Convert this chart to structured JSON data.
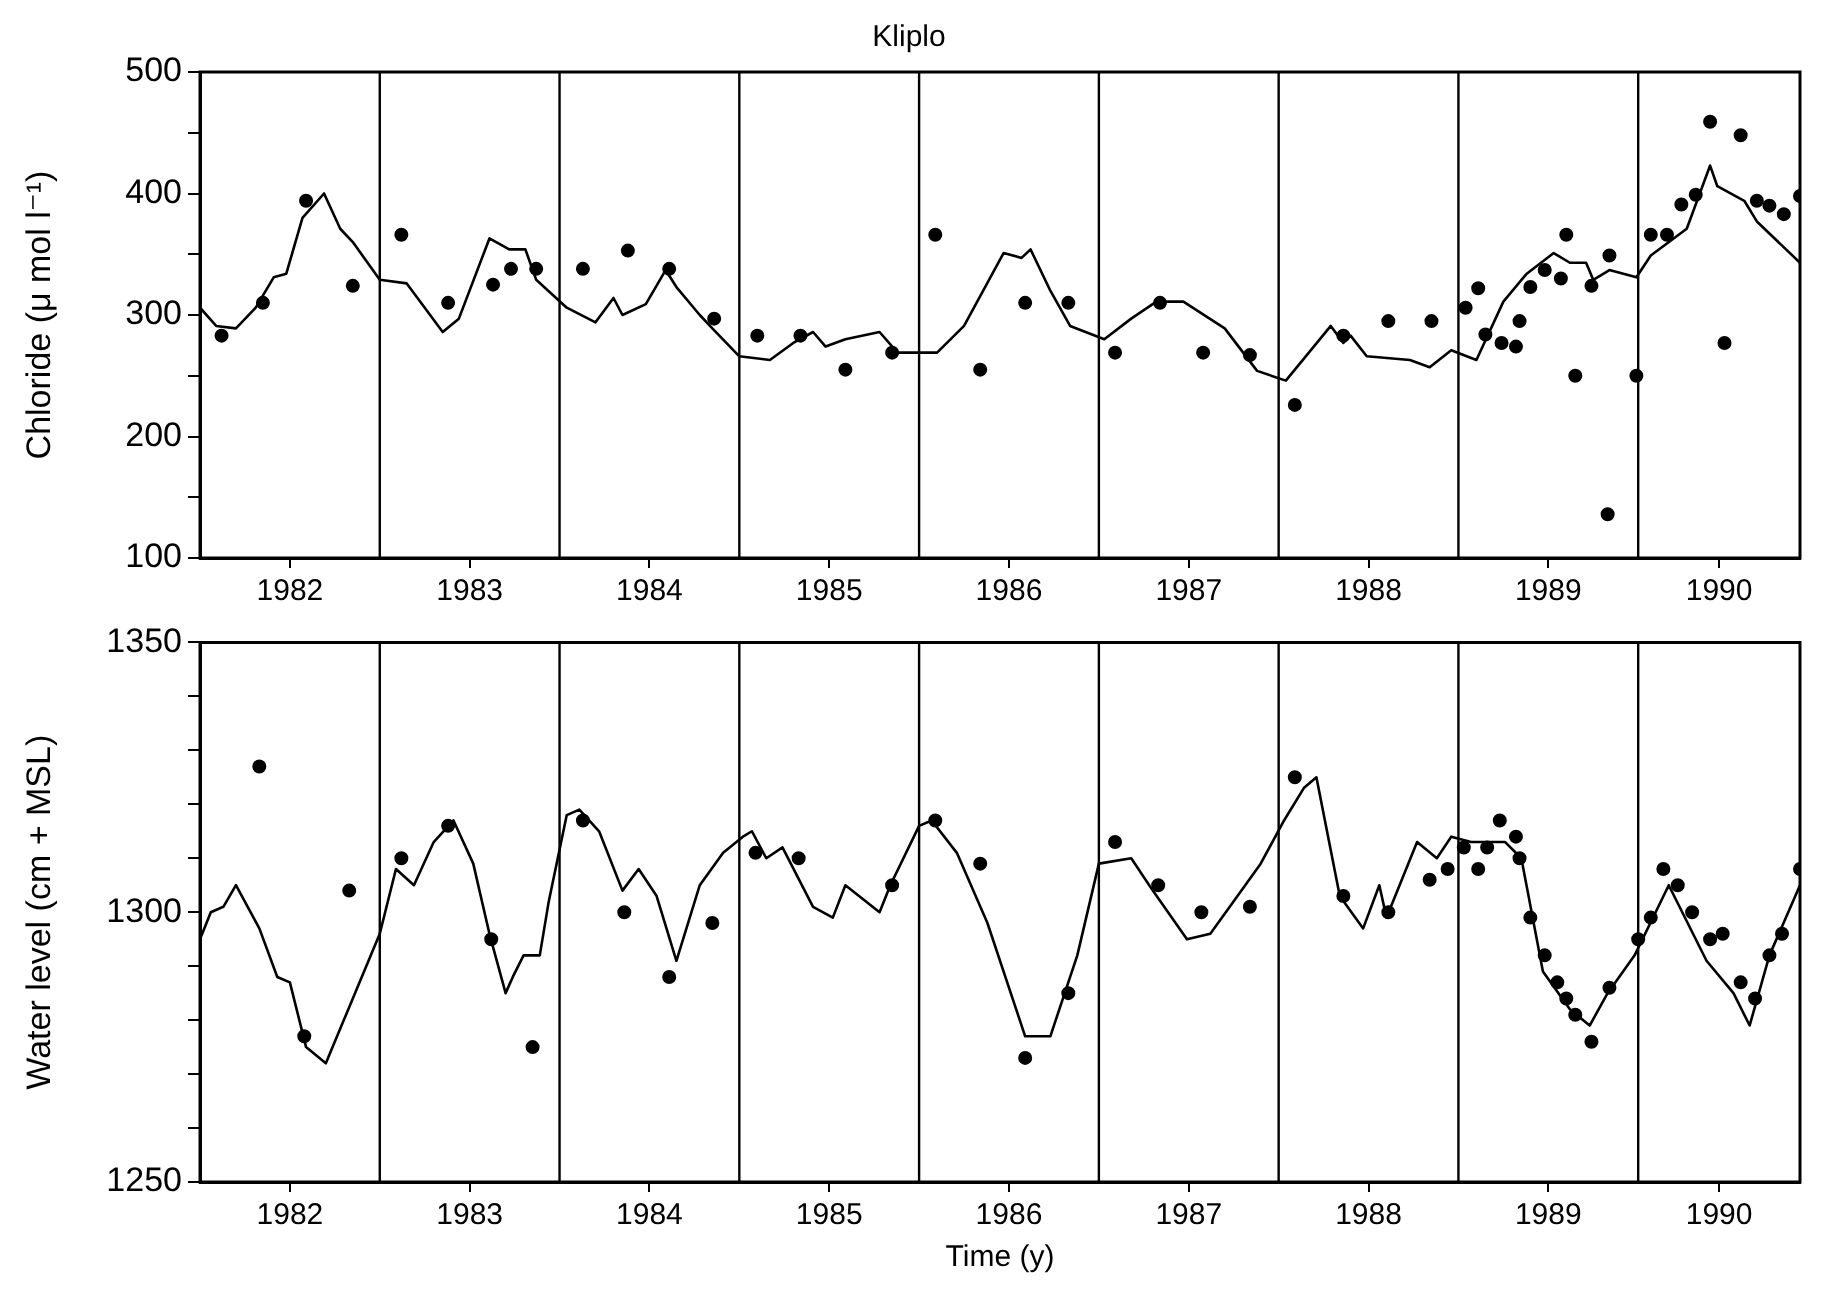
{
  "chart_data": [
    {
      "type": "line",
      "title": "Kliplo",
      "ylabel": "Chloride (μ mol l⁻¹)",
      "xlim": [
        1982,
        1990.9
      ],
      "ylim": [
        100,
        500
      ],
      "xticks": [
        {
          "value": 1982.5,
          "label": "1982"
        },
        {
          "value": 1983.5,
          "label": "1983"
        },
        {
          "value": 1984.5,
          "label": "1984"
        },
        {
          "value": 1985.5,
          "label": "1985"
        },
        {
          "value": 1986.5,
          "label": "1986"
        },
        {
          "value": 1987.5,
          "label": "1987"
        },
        {
          "value": 1988.5,
          "label": "1988"
        },
        {
          "value": 1989.5,
          "label": "1989"
        },
        {
          "value": 1990.45,
          "label": "1990"
        }
      ],
      "yticks": [
        100,
        {
          "value": 150,
          "label": null
        },
        200,
        {
          "value": 250,
          "label": null
        },
        300,
        {
          "value": 350,
          "label": null
        },
        400,
        {
          "value": 450,
          "label": null
        },
        500
      ],
      "grid": false,
      "legend": false,
      "ref_lines": [
        {
          "axis": "x",
          "value": 1983
        },
        {
          "axis": "x",
          "value": 1984
        },
        {
          "axis": "x",
          "value": 1985
        },
        {
          "axis": "x",
          "value": 1986
        },
        {
          "axis": "x",
          "value": 1987
        },
        {
          "axis": "x",
          "value": 1988
        },
        {
          "axis": "x",
          "value": 1989
        },
        {
          "axis": "x",
          "value": 1990
        }
      ],
      "series": [
        {
          "type": "line",
          "color": "#000000",
          "marker": "none",
          "x": [
            1982.0,
            1982.09,
            1982.2,
            1982.31,
            1982.41,
            1982.48,
            1982.57,
            1982.69,
            1982.78,
            1982.85,
            1983.0,
            1983.15,
            1983.35,
            1983.44,
            1983.61,
            1983.72,
            1983.81,
            1983.87,
            1984.04,
            1984.2,
            1984.3,
            1984.35,
            1984.48,
            1984.59,
            1984.65,
            1984.78,
            1984.85,
            1985.0,
            1985.17,
            1985.3,
            1985.41,
            1985.48,
            1985.59,
            1985.78,
            1985.88,
            1986.1,
            1986.25,
            1986.47,
            1986.57,
            1986.62,
            1986.73,
            1986.84,
            1987.03,
            1987.18,
            1987.32,
            1987.47,
            1987.7,
            1987.88,
            1988.04,
            1988.29,
            1988.36,
            1988.4,
            1988.49,
            1988.73,
            1988.84,
            1988.96,
            1989.1,
            1989.25,
            1989.38,
            1989.53,
            1989.62,
            1989.71,
            1989.75,
            1989.84,
            1989.99,
            1990.07,
            1990.27,
            1990.4,
            1990.44,
            1990.59,
            1990.66,
            1990.9
          ],
          "values": [
            306,
            291,
            289,
            306,
            331,
            334,
            380,
            400,
            371,
            360,
            329,
            326,
            286,
            297,
            363,
            354,
            354,
            329,
            306,
            294,
            314,
            300,
            309,
            337,
            323,
            300,
            289,
            266,
            263,
            277,
            286,
            274,
            280,
            286,
            269,
            269,
            291,
            351,
            347,
            354,
            320,
            291,
            280,
            297,
            311,
            311,
            289,
            254,
            246,
            291,
            277,
            283,
            266,
            263,
            257,
            271,
            263,
            311,
            334,
            351,
            343,
            343,
            329,
            337,
            331,
            349,
            371,
            423,
            406,
            394,
            377,
            343
          ]
        },
        {
          "type": "scatter",
          "color": "#000000",
          "marker": "circle",
          "x": [
            1982.12,
            1982.35,
            1982.59,
            1982.85,
            1983.12,
            1983.38,
            1983.63,
            1983.73,
            1983.87,
            1984.13,
            1984.38,
            1984.61,
            1984.86,
            1985.1,
            1985.34,
            1985.59,
            1985.85,
            1986.09,
            1986.34,
            1986.59,
            1986.83,
            1987.09,
            1987.34,
            1987.58,
            1987.84,
            1988.09,
            1988.36,
            1988.61,
            1988.85,
            1989.04,
            1989.11,
            1989.15,
            1989.24,
            1989.32,
            1989.34,
            1989.4,
            1989.48,
            1989.57,
            1989.6,
            1989.65,
            1989.74,
            1989.84,
            1989.83,
            1989.99,
            1990.07,
            1990.16,
            1990.24,
            1990.32,
            1990.4,
            1990.48,
            1990.57,
            1990.66,
            1990.73,
            1990.81,
            1990.9
          ],
          "values": [
            283,
            310,
            394,
            324,
            366,
            310,
            325,
            338,
            338,
            338,
            353,
            338,
            297,
            283,
            283,
            255,
            269,
            366,
            255,
            310,
            310,
            269,
            310,
            269,
            267,
            226,
            283,
            295,
            295,
            306,
            322,
            284,
            277,
            274,
            295,
            323,
            337,
            330,
            366,
            250,
            324,
            349,
            136,
            250,
            366,
            366,
            391,
            399,
            459,
            277,
            448,
            394,
            390,
            383,
            398
          ]
        }
      ]
    },
    {
      "type": "line",
      "xlabel": "Time (y)",
      "ylabel": "Water level (cm + MSL)",
      "xlim": [
        1982,
        1990.9
      ],
      "ylim": [
        1250,
        1350
      ],
      "xticks": [
        {
          "value": 1982.5,
          "label": "1982"
        },
        {
          "value": 1983.5,
          "label": "1983"
        },
        {
          "value": 1984.5,
          "label": "1984"
        },
        {
          "value": 1985.5,
          "label": "1985"
        },
        {
          "value": 1986.5,
          "label": "1986"
        },
        {
          "value": 1987.5,
          "label": "1987"
        },
        {
          "value": 1988.5,
          "label": "1988"
        },
        {
          "value": 1989.5,
          "label": "1989"
        },
        {
          "value": 1990.45,
          "label": "1990"
        }
      ],
      "yticks": [
        1250,
        {
          "value": 1260,
          "label": null
        },
        {
          "value": 1270,
          "label": null
        },
        {
          "value": 1280,
          "label": null
        },
        {
          "value": 1290,
          "label": null
        },
        1300,
        {
          "value": 1310,
          "label": null
        },
        {
          "value": 1320,
          "label": null
        },
        {
          "value": 1330,
          "label": null
        },
        {
          "value": 1340,
          "label": null
        },
        1350
      ],
      "grid": false,
      "legend": false,
      "ref_lines": [
        {
          "axis": "x",
          "value": 1983
        },
        {
          "axis": "x",
          "value": 1984
        },
        {
          "axis": "x",
          "value": 1985
        },
        {
          "axis": "x",
          "value": 1986
        },
        {
          "axis": "x",
          "value": 1987
        },
        {
          "axis": "x",
          "value": 1988
        },
        {
          "axis": "x",
          "value": 1989
        },
        {
          "axis": "x",
          "value": 1990
        }
      ],
      "series": [
        {
          "type": "line",
          "color": "#000000",
          "marker": "none",
          "x": [
            1982.0,
            1982.06,
            1982.13,
            1982.2,
            1982.33,
            1982.43,
            1982.5,
            1982.59,
            1982.7,
            1982.8,
            1983.0,
            1983.09,
            1983.19,
            1983.3,
            1983.41,
            1983.52,
            1983.61,
            1983.7,
            1983.74,
            1983.8,
            1983.89,
            1983.94,
            1984.04,
            1984.11,
            1984.22,
            1984.35,
            1984.44,
            1984.54,
            1984.65,
            1984.78,
            1984.91,
            1985.02,
            1985.07,
            1985.15,
            1985.24,
            1985.41,
            1985.52,
            1985.59,
            1985.78,
            1985.84,
            1986.0,
            1986.07,
            1986.21,
            1986.38,
            1986.59,
            1986.73,
            1986.88,
            1987.0,
            1987.18,
            1987.3,
            1987.49,
            1987.62,
            1987.9,
            1988.03,
            1988.14,
            1988.21,
            1988.34,
            1988.47,
            1988.56,
            1988.6,
            1988.77,
            1988.88,
            1988.96,
            1989.07,
            1989.26,
            1989.35,
            1989.43,
            1989.47,
            1989.62,
            1989.73,
            1989.83,
            1989.98,
            1990.17,
            1990.38,
            1990.53,
            1990.62,
            1990.73,
            1990.9
          ],
          "values": [
            1295,
            1300,
            1301,
            1305,
            1297,
            1288,
            1287,
            1275,
            1272,
            1280,
            1296,
            1308,
            1305,
            1313,
            1317,
            1309,
            1296,
            1285,
            1288,
            1292,
            1292,
            1302,
            1318,
            1319,
            1315,
            1304,
            1308,
            1303,
            1291,
            1305,
            1311,
            1314,
            1315,
            1310,
            1312,
            1301,
            1299,
            1305,
            1300,
            1305,
            1316,
            1317,
            1311,
            1298,
            1277,
            1277,
            1292,
            1309,
            1310,
            1304,
            1295,
            1296,
            1309,
            1317,
            1323,
            1325,
            1303,
            1297,
            1305,
            1299,
            1313,
            1310,
            1314,
            1313,
            1313,
            1310,
            1296,
            1289,
            1282,
            1279,
            1285,
            1292,
            1305,
            1291,
            1285,
            1279,
            1292,
            1305
          ]
        },
        {
          "type": "scatter",
          "color": "#000000",
          "marker": "circle",
          "x": [
            1982.33,
            1982.58,
            1982.83,
            1983.12,
            1983.38,
            1983.62,
            1983.85,
            1984.13,
            1984.36,
            1984.61,
            1984.85,
            1985.09,
            1985.33,
            1985.85,
            1986.09,
            1986.34,
            1986.59,
            1986.83,
            1987.09,
            1987.33,
            1987.57,
            1987.84,
            1988.09,
            1988.36,
            1988.61,
            1988.84,
            1988.94,
            1989.03,
            1989.11,
            1989.16,
            1989.23,
            1989.32,
            1989.34,
            1989.4,
            1989.48,
            1989.55,
            1989.6,
            1989.65,
            1989.74,
            1989.84,
            1990.0,
            1990.07,
            1990.14,
            1990.22,
            1990.3,
            1990.4,
            1990.47,
            1990.57,
            1990.65,
            1990.73,
            1990.8,
            1990.9
          ],
          "values": [
            1327,
            1277,
            1304,
            1310,
            1316,
            1295,
            1275,
            1317,
            1300,
            1288,
            1298,
            1311,
            1310,
            1305,
            1317,
            1309,
            1273,
            1285,
            1313,
            1305,
            1300,
            1301,
            1325,
            1303,
            1300,
            1306,
            1308,
            1312,
            1308,
            1312,
            1317,
            1314,
            1310,
            1299,
            1292,
            1287,
            1284,
            1281,
            1276,
            1286,
            1295,
            1299,
            1308,
            1305,
            1300,
            1295,
            1296,
            1287,
            1284,
            1292,
            1296,
            1308
          ]
        }
      ]
    }
  ]
}
